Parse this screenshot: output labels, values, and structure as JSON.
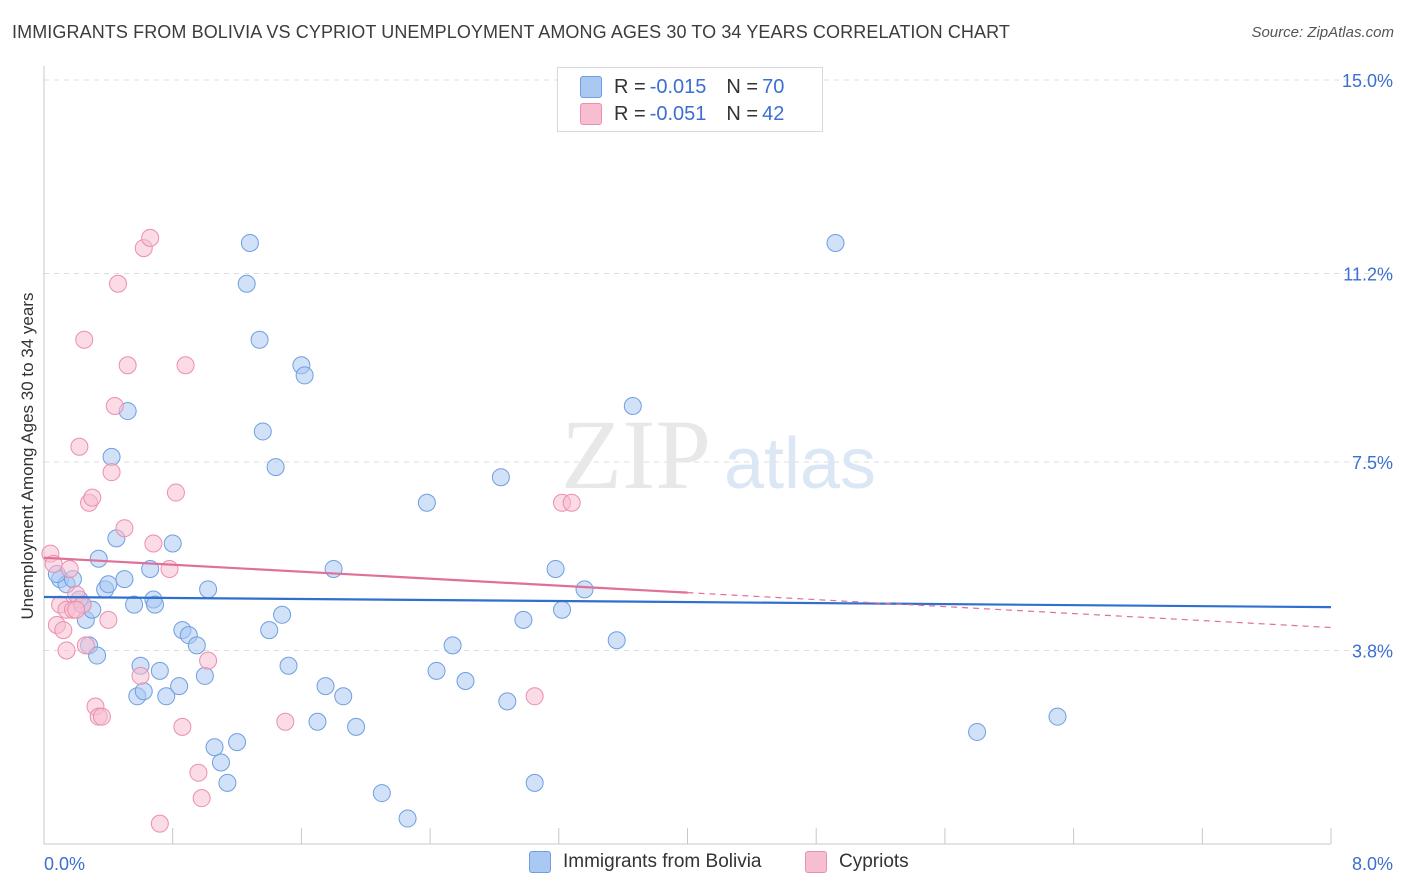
{
  "title": "IMMIGRANTS FROM BOLIVIA VS CYPRIOT UNEMPLOYMENT AMONG AGES 30 TO 34 YEARS CORRELATION CHART",
  "source": "Source: ZipAtlas.com",
  "watermark": {
    "zip": "ZIP",
    "atlas": "atlas"
  },
  "legend_top": [
    {
      "r_label": "R = ",
      "r_value": "-0.015",
      "n_label": "N = ",
      "n_value": "70"
    },
    {
      "r_label": "R = ",
      "r_value": "-0.051",
      "n_label": "N = ",
      "n_value": "42"
    }
  ],
  "colors": {
    "blue_fill": "#a9c8f2",
    "blue_stroke": "#6f9fe0",
    "blue_line": "#2f6fce",
    "pink_fill": "#f7bdd0",
    "pink_stroke": "#eb8fae",
    "pink_line": "#e0709a",
    "grid": "#dcdcdc",
    "tick_label": "#3b6fd1"
  },
  "chart_data": {
    "type": "scatter",
    "title": "IMMIGRANTS FROM BOLIVIA VS CYPRIOT UNEMPLOYMENT AMONG AGES 30 TO 34 YEARS CORRELATION CHART",
    "xlabel": "",
    "ylabel": "Unemployment Among Ages 30 to 34 years",
    "xlim": [
      0,
      8.0
    ],
    "ylim": [
      0,
      15.0
    ],
    "x_tick_labels": [
      "0.0%",
      "8.0%"
    ],
    "y_ticks": [
      3.8,
      7.5,
      11.2,
      15.0
    ],
    "y_tick_labels": [
      "3.8%",
      "7.5%",
      "11.2%",
      "15.0%"
    ],
    "series": [
      {
        "name": "Immigrants from Bolivia",
        "r": -0.015,
        "n": 70,
        "trend": {
          "x0": 0,
          "y0": 4.85,
          "x1": 8.0,
          "y1": 4.65
        },
        "points": [
          [
            0.1,
            5.2
          ],
          [
            0.14,
            5.1
          ],
          [
            0.08,
            5.3
          ],
          [
            0.24,
            4.7
          ],
          [
            0.26,
            4.4
          ],
          [
            0.28,
            3.9
          ],
          [
            0.33,
            3.7
          ],
          [
            0.34,
            5.6
          ],
          [
            0.38,
            5.0
          ],
          [
            0.4,
            5.1
          ],
          [
            0.42,
            7.6
          ],
          [
            0.45,
            6.0
          ],
          [
            0.5,
            5.2
          ],
          [
            0.56,
            4.7
          ],
          [
            0.58,
            2.9
          ],
          [
            0.6,
            3.5
          ],
          [
            0.62,
            3.0
          ],
          [
            0.66,
            5.4
          ],
          [
            0.68,
            4.8
          ],
          [
            0.69,
            4.7
          ],
          [
            0.72,
            3.4
          ],
          [
            0.76,
            2.9
          ],
          [
            0.8,
            5.9
          ],
          [
            0.84,
            3.1
          ],
          [
            0.86,
            4.2
          ],
          [
            0.9,
            4.1
          ],
          [
            1.0,
            3.3
          ],
          [
            0.95,
            3.9
          ],
          [
            1.02,
            5.0
          ],
          [
            1.06,
            1.9
          ],
          [
            1.1,
            1.6
          ],
          [
            1.14,
            1.2
          ],
          [
            1.2,
            2.0
          ],
          [
            1.26,
            11.0
          ],
          [
            1.28,
            11.8
          ],
          [
            1.34,
            9.9
          ],
          [
            1.36,
            8.1
          ],
          [
            1.4,
            4.2
          ],
          [
            1.44,
            7.4
          ],
          [
            1.48,
            4.5
          ],
          [
            1.52,
            3.5
          ],
          [
            1.6,
            9.4
          ],
          [
            1.62,
            9.2
          ],
          [
            1.7,
            2.4
          ],
          [
            1.75,
            3.1
          ],
          [
            1.8,
            5.4
          ],
          [
            1.86,
            2.9
          ],
          [
            1.94,
            2.3
          ],
          [
            2.1,
            1.0
          ],
          [
            2.26,
            0.5
          ],
          [
            2.38,
            6.7
          ],
          [
            2.44,
            3.4
          ],
          [
            2.54,
            3.9
          ],
          [
            2.62,
            3.2
          ],
          [
            2.84,
            7.2
          ],
          [
            2.88,
            2.8
          ],
          [
            2.98,
            4.4
          ],
          [
            3.05,
            1.2
          ],
          [
            3.18,
            5.4
          ],
          [
            3.22,
            4.6
          ],
          [
            3.36,
            5.0
          ],
          [
            3.56,
            4.0
          ],
          [
            3.66,
            8.6
          ],
          [
            4.92,
            11.8
          ],
          [
            5.8,
            2.2
          ],
          [
            6.3,
            2.5
          ],
          [
            0.18,
            5.2
          ],
          [
            0.22,
            4.8
          ],
          [
            0.52,
            8.5
          ],
          [
            0.3,
            4.6
          ]
        ]
      },
      {
        "name": "Cypriots",
        "r": -0.051,
        "n": 42,
        "trend": {
          "x0": 0,
          "y0": 5.62,
          "x1": 8.0,
          "y1": 4.25,
          "solid_until_x": 4.0
        },
        "points": [
          [
            0.04,
            5.7
          ],
          [
            0.06,
            5.5
          ],
          [
            0.08,
            4.3
          ],
          [
            0.1,
            4.7
          ],
          [
            0.12,
            4.2
          ],
          [
            0.14,
            4.6
          ],
          [
            0.16,
            5.4
          ],
          [
            0.18,
            4.6
          ],
          [
            0.2,
            4.9
          ],
          [
            0.22,
            7.8
          ],
          [
            0.25,
            9.9
          ],
          [
            0.28,
            6.7
          ],
          [
            0.3,
            6.8
          ],
          [
            0.32,
            2.7
          ],
          [
            0.34,
            2.5
          ],
          [
            0.36,
            2.5
          ],
          [
            0.4,
            4.4
          ],
          [
            0.42,
            7.3
          ],
          [
            0.44,
            8.6
          ],
          [
            0.46,
            11.0
          ],
          [
            0.5,
            6.2
          ],
          [
            0.52,
            9.4
          ],
          [
            0.62,
            11.7
          ],
          [
            0.66,
            11.9
          ],
          [
            0.68,
            5.9
          ],
          [
            0.72,
            0.4
          ],
          [
            0.78,
            5.4
          ],
          [
            0.82,
            6.9
          ],
          [
            0.86,
            2.3
          ],
          [
            0.88,
            9.4
          ],
          [
            0.96,
            1.4
          ],
          [
            0.98,
            0.9
          ],
          [
            1.02,
            3.6
          ],
          [
            1.5,
            2.4
          ],
          [
            3.05,
            2.9
          ],
          [
            3.22,
            6.7
          ],
          [
            3.28,
            6.7
          ],
          [
            0.24,
            4.7
          ],
          [
            0.14,
            3.8
          ],
          [
            0.2,
            4.6
          ],
          [
            0.6,
            3.3
          ],
          [
            0.26,
            3.9
          ]
        ]
      }
    ]
  }
}
